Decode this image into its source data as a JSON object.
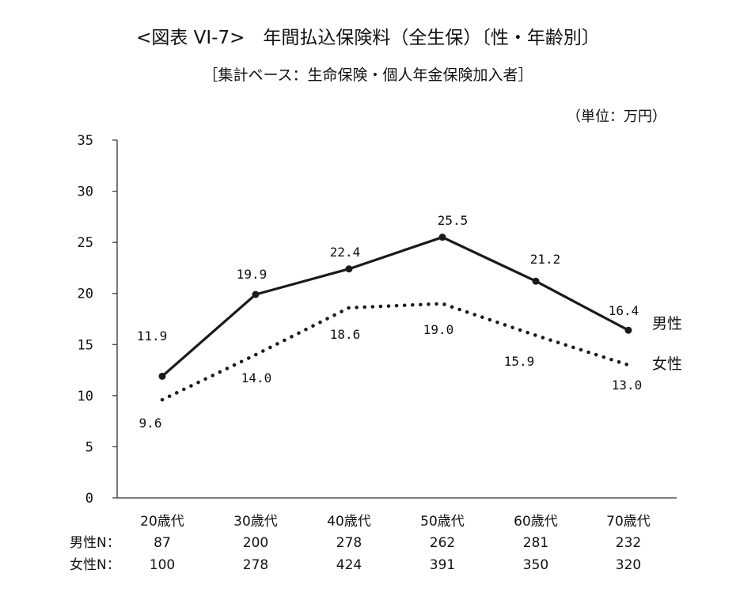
{
  "header": {
    "title": "<図表 VI-7>　年間払込保険料（全生保）〔性・年齢別〕",
    "subtitle": "［集計ベース：生命保険・個人年金保険加入者］",
    "unit": "（単位：万円）"
  },
  "n_table": {
    "male_label": "男性N：",
    "female_label": "女性N：",
    "male_values": [
      "87",
      "200",
      "278",
      "262",
      "281",
      "232"
    ],
    "female_values": [
      "100",
      "278",
      "424",
      "391",
      "350",
      "320"
    ]
  },
  "colors": {
    "line": "#1a1a1a",
    "axis": "#333333",
    "background": "#ffffff"
  },
  "chart_data": {
    "type": "line",
    "title": "<図表 VI-7>　年間払込保険料（全生保）〔性・年齢別〕",
    "categories": [
      "20歳代",
      "30歳代",
      "40歳代",
      "50歳代",
      "60歳代",
      "70歳代"
    ],
    "series": [
      {
        "name": "男性",
        "style": "solid",
        "markers": true,
        "values": [
          11.9,
          19.9,
          22.4,
          25.5,
          21.2,
          16.4
        ],
        "labels": [
          "11.9",
          "19.9",
          "22.4",
          "25.5",
          "21.2",
          "16.4"
        ]
      },
      {
        "name": "女性",
        "style": "dotted",
        "markers": false,
        "values": [
          9.6,
          14.0,
          18.6,
          19.0,
          15.9,
          13.0
        ],
        "labels": [
          "9.6",
          "14.0",
          "18.6",
          "19.0",
          "15.9",
          "13.0"
        ]
      }
    ],
    "ylim": [
      0,
      35
    ],
    "yticks": [
      "0",
      "5",
      "10",
      "15",
      "20",
      "25",
      "30",
      "35"
    ],
    "grid": false,
    "legend": "inline-right"
  }
}
